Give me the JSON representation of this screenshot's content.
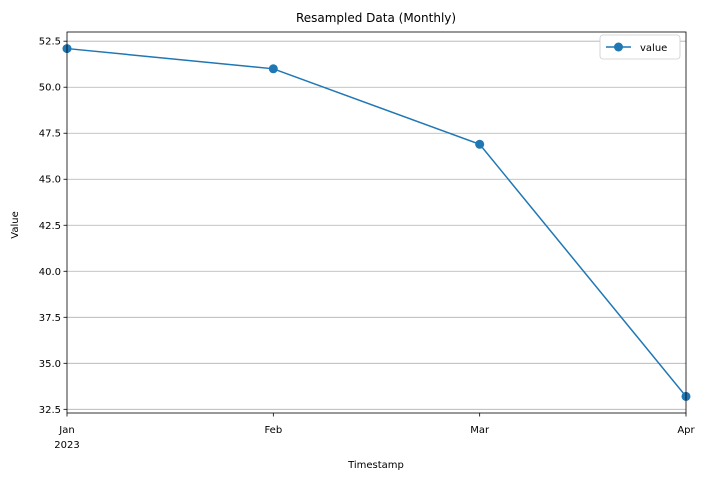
{
  "chart_data": {
    "type": "line",
    "title": "Resampled Data (Monthly)",
    "xlabel": "Timestamp",
    "ylabel": "Value",
    "x": [
      "2023-01",
      "2023-02",
      "2023-03",
      "2023-04"
    ],
    "x_tick_labels": [
      "Jan",
      "Feb",
      "Mar",
      "Apr"
    ],
    "x_year_label": "2023",
    "ylim": [
      32.3,
      53.0
    ],
    "y_ticks": [
      "32.5",
      "35.0",
      "37.5",
      "40.0",
      "42.5",
      "45.0",
      "47.5",
      "50.0",
      "52.5"
    ],
    "grid": "y",
    "legend_position": "top-right",
    "series": [
      {
        "name": "value",
        "color": "#1f77b4",
        "marker": "circle",
        "values": [
          52.1,
          51.0,
          46.9,
          33.2
        ]
      }
    ]
  }
}
